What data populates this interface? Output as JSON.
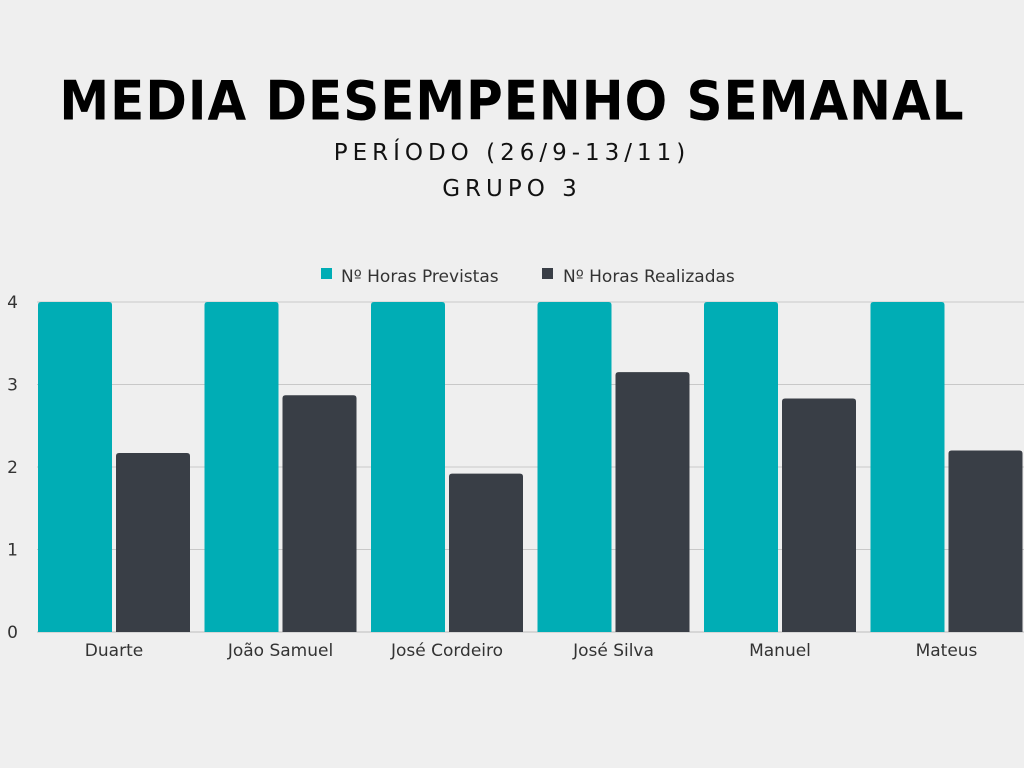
{
  "title": "MEDIA DESEMPENHO SEMANAL",
  "subtitle_lines": [
    "PERÍODO (26/9-13/11)",
    "GRUPO 3"
  ],
  "colors": {
    "background": "#efefef",
    "series1": "#00adb5",
    "series2": "#393e46",
    "grid": "#c8c8c8"
  },
  "chart_data": {
    "type": "bar",
    "categories": [
      "Duarte",
      "João Samuel",
      "José Cordeiro",
      "José Silva",
      "Manuel",
      "Mateus"
    ],
    "series": [
      {
        "name": "Nº Horas Previstas",
        "values": [
          4,
          4,
          4,
          4,
          4,
          4
        ]
      },
      {
        "name": "Nº Horas Realizadas",
        "values": [
          2.17,
          2.87,
          1.92,
          3.15,
          2.83,
          2.2
        ]
      }
    ],
    "yticks": [
      0,
      1,
      2,
      3,
      4
    ],
    "ylim": [
      0,
      4
    ],
    "grid": true,
    "legend_position": "top-center"
  }
}
